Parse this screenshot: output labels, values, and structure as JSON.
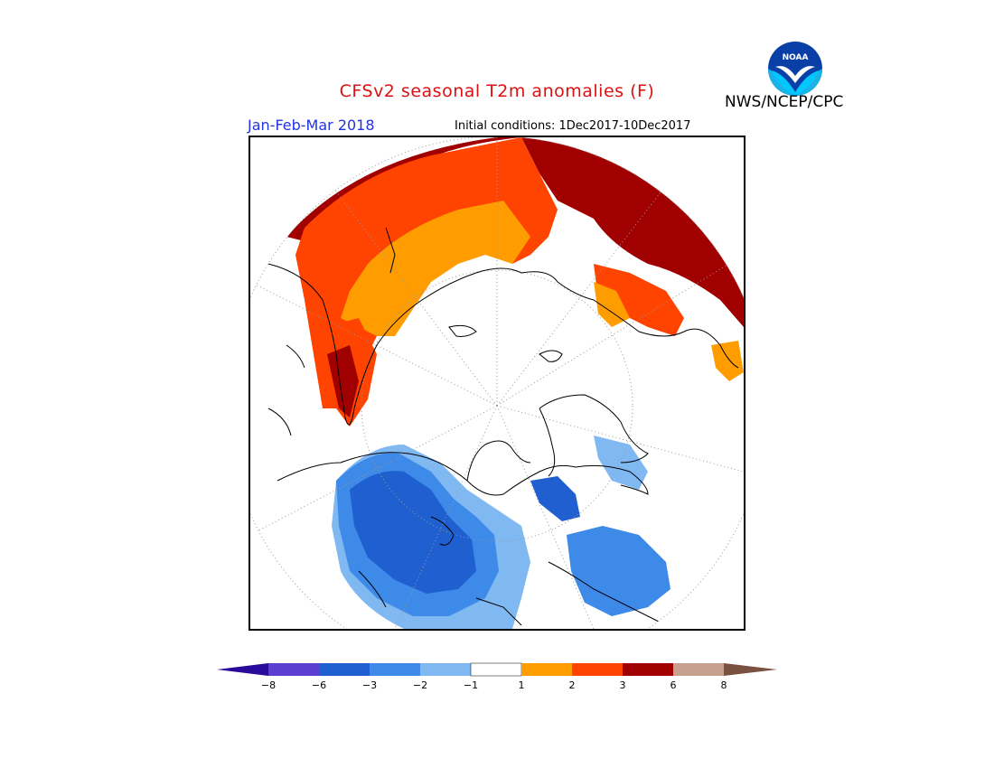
{
  "header": {
    "title": "CFSv2 seasonal T2m anomalies (F)",
    "period": "Jan-Feb-Mar 2018",
    "initial_conditions": "Initial conditions: 1Dec2017-10Dec2017",
    "agency": "NWS/NCEP/CPC",
    "logo_text": "NOAA"
  },
  "legend": {
    "ticks": [
      "−8",
      "−6",
      "−3",
      "−2",
      "−1",
      "1",
      "2",
      "3",
      "6",
      "8"
    ],
    "colors": [
      "#2a0a9a",
      "#5a3fd0",
      "#1f5fd0",
      "#3d8ae8",
      "#80b8f2",
      "#ffffff",
      "#ff9d00",
      "#ff4300",
      "#a10000",
      "#c8a090",
      "#7a5040"
    ]
  },
  "map": {
    "projection": "north-polar-stereographic",
    "colors": {
      "deep_red": "#a10000",
      "red_orange": "#ff4300",
      "orange": "#ff9d00",
      "light_blue": "#80b8f2",
      "mid_blue": "#3d8ae8",
      "dark_blue": "#1f5fd0",
      "coast": "#000000",
      "grid": "#999999"
    }
  }
}
